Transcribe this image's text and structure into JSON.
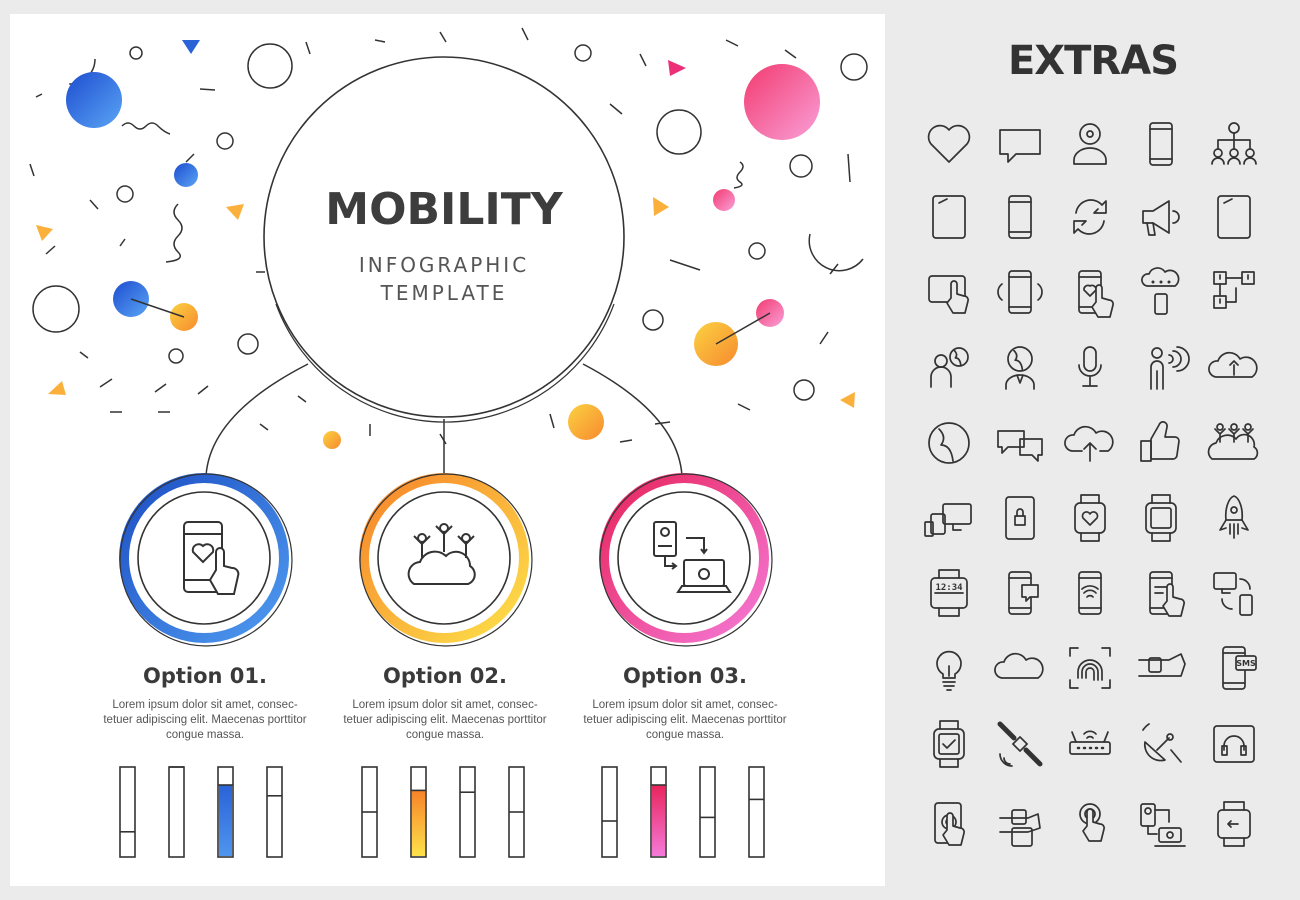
{
  "title": "MOBILITY",
  "subtitle_line1": "INFOGRAPHIC",
  "subtitle_line2": "TEMPLATE",
  "colors": {
    "blue": "#2f6fdc",
    "orange": "#fbb03b",
    "pink": "#ec2f78",
    "dark": "#333333"
  },
  "options": [
    {
      "title": "Option 01.",
      "description": "Lorem ipsum dolor sit amet, consec-tetuer adipiscing elit. Maecenas porttitor congue massa.",
      "icon": "phone-heart-touch-icon",
      "accent": "blue",
      "bars": [
        0.28,
        1.0,
        0.8,
        0.68
      ],
      "highlight_bar": 3
    },
    {
      "title": "Option 02.",
      "description": "Lorem ipsum dolor sit amet, consec-tetuer adipiscing elit. Maecenas porttitor congue massa.",
      "icon": "people-on-cloud-icon",
      "accent": "orange",
      "bars": [
        0.5,
        0.74,
        0.72,
        0.5
      ],
      "highlight_bar": 2
    },
    {
      "title": "Option 03.",
      "description": "Lorem ipsum dolor sit amet, consec-tetuer adipiscing elit. Maecenas porttitor congue massa.",
      "icon": "device-transfer-icon",
      "accent": "pink",
      "bars": [
        0.4,
        0.8,
        0.44,
        0.64
      ],
      "highlight_bar": 2
    }
  ],
  "extras": {
    "title": "EXTRAS",
    "icons": [
      "heart-icon",
      "speech-bubble-icon",
      "webcam-user-icon",
      "smartphone-icon",
      "org-chart-icon",
      "tablet-icon",
      "smartphone-icon",
      "sync-icon",
      "megaphone-icon",
      "tablet-icon",
      "tablet-touch-icon",
      "phone-vibrate-icon",
      "phone-heart-touch-icon",
      "cloud-devices-icon",
      "network-alert-icon",
      "person-globe-icon",
      "globe-head-icon",
      "microphone-icon",
      "person-speaking-icon",
      "cloud-upload-icon",
      "globe-icon",
      "chat-bubbles-icon",
      "cloud-upload-arrow-icon",
      "thumbs-up-icon",
      "people-cloud-icon",
      "multi-device-icon",
      "tablet-lock-icon",
      "smartwatch-heart-icon",
      "smartwatch-icon",
      "rocket-icon",
      "smartwatch-weather-icon",
      "phone-chat-icon",
      "phone-wifi-icon",
      "phone-touch-icon",
      "device-sync-icon",
      "lightbulb-icon",
      "cloud-icon",
      "fingerprint-icon",
      "wrist-watch-icon",
      "phone-sms-icon",
      "smartwatch-check-icon",
      "satellite-icon",
      "router-icon",
      "satellite-dish-icon",
      "tablet-headphones-icon",
      "tablet-finger-icon",
      "wrist-device-icon",
      "touch-icon",
      "device-transfer-icon",
      "smartwatch-back-icon"
    ],
    "icon_labels": {
      "smartwatch-weather": "12:34",
      "phone-sms": "SMS"
    }
  }
}
